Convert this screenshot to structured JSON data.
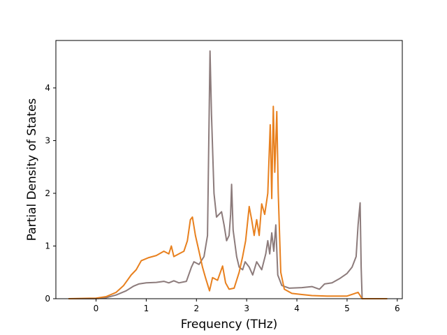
{
  "chart_data": {
    "type": "line",
    "title": "",
    "xlabel": "Frequency (THz)",
    "ylabel": "Partial Density of States",
    "xlim": [
      -0.8,
      6.1
    ],
    "ylim": [
      0,
      4.9
    ],
    "xticks": [
      0,
      1,
      2,
      3,
      4,
      5,
      6
    ],
    "yticks": [
      0,
      1,
      2,
      3,
      4
    ],
    "grid": false,
    "legend": "none",
    "series": [
      {
        "color": "#8c7b7b",
        "points": [
          [
            -0.55,
            0
          ],
          [
            0.0,
            0.0
          ],
          [
            0.2,
            0.02
          ],
          [
            0.4,
            0.07
          ],
          [
            0.6,
            0.15
          ],
          [
            0.75,
            0.24
          ],
          [
            0.85,
            0.28
          ],
          [
            1.0,
            0.3
          ],
          [
            1.2,
            0.31
          ],
          [
            1.35,
            0.33
          ],
          [
            1.45,
            0.3
          ],
          [
            1.55,
            0.34
          ],
          [
            1.65,
            0.3
          ],
          [
            1.8,
            0.33
          ],
          [
            1.9,
            0.6
          ],
          [
            1.95,
            0.7
          ],
          [
            2.05,
            0.65
          ],
          [
            2.15,
            0.8
          ],
          [
            2.22,
            1.2
          ],
          [
            2.27,
            4.7
          ],
          [
            2.3,
            3.5
          ],
          [
            2.35,
            2.0
          ],
          [
            2.4,
            1.55
          ],
          [
            2.45,
            1.6
          ],
          [
            2.5,
            1.65
          ],
          [
            2.55,
            1.4
          ],
          [
            2.6,
            1.1
          ],
          [
            2.65,
            1.2
          ],
          [
            2.68,
            1.6
          ],
          [
            2.7,
            2.17
          ],
          [
            2.73,
            1.3
          ],
          [
            2.8,
            0.8
          ],
          [
            2.85,
            0.6
          ],
          [
            2.92,
            0.55
          ],
          [
            2.97,
            0.7
          ],
          [
            3.05,
            0.6
          ],
          [
            3.12,
            0.45
          ],
          [
            3.2,
            0.7
          ],
          [
            3.3,
            0.55
          ],
          [
            3.38,
            0.85
          ],
          [
            3.42,
            1.1
          ],
          [
            3.46,
            0.85
          ],
          [
            3.5,
            1.25
          ],
          [
            3.54,
            0.9
          ],
          [
            3.58,
            1.4
          ],
          [
            3.62,
            0.45
          ],
          [
            3.7,
            0.25
          ],
          [
            3.85,
            0.2
          ],
          [
            4.1,
            0.21
          ],
          [
            4.3,
            0.23
          ],
          [
            4.45,
            0.18
          ],
          [
            4.55,
            0.28
          ],
          [
            4.7,
            0.3
          ],
          [
            4.85,
            0.38
          ],
          [
            5.0,
            0.48
          ],
          [
            5.1,
            0.6
          ],
          [
            5.18,
            0.8
          ],
          [
            5.22,
            1.4
          ],
          [
            5.26,
            1.82
          ],
          [
            5.28,
            0.6
          ],
          [
            5.3,
            0
          ],
          [
            5.8,
            0
          ]
        ]
      },
      {
        "color": "#e8801e",
        "points": [
          [
            -0.55,
            0
          ],
          [
            0.0,
            0.01
          ],
          [
            0.2,
            0.04
          ],
          [
            0.4,
            0.12
          ],
          [
            0.55,
            0.25
          ],
          [
            0.7,
            0.45
          ],
          [
            0.8,
            0.55
          ],
          [
            0.9,
            0.72
          ],
          [
            1.05,
            0.78
          ],
          [
            1.2,
            0.82
          ],
          [
            1.35,
            0.9
          ],
          [
            1.45,
            0.85
          ],
          [
            1.5,
            1.0
          ],
          [
            1.55,
            0.8
          ],
          [
            1.65,
            0.85
          ],
          [
            1.75,
            0.9
          ],
          [
            1.82,
            1.1
          ],
          [
            1.88,
            1.5
          ],
          [
            1.92,
            1.55
          ],
          [
            1.98,
            1.2
          ],
          [
            2.05,
            0.9
          ],
          [
            2.12,
            0.6
          ],
          [
            2.18,
            0.4
          ],
          [
            2.26,
            0.15
          ],
          [
            2.32,
            0.4
          ],
          [
            2.42,
            0.35
          ],
          [
            2.52,
            0.62
          ],
          [
            2.58,
            0.3
          ],
          [
            2.65,
            0.18
          ],
          [
            2.75,
            0.2
          ],
          [
            2.85,
            0.5
          ],
          [
            2.92,
            0.8
          ],
          [
            2.98,
            1.1
          ],
          [
            3.05,
            1.75
          ],
          [
            3.1,
            1.5
          ],
          [
            3.15,
            1.2
          ],
          [
            3.2,
            1.5
          ],
          [
            3.25,
            1.2
          ],
          [
            3.3,
            1.8
          ],
          [
            3.36,
            1.6
          ],
          [
            3.42,
            2.0
          ],
          [
            3.47,
            3.3
          ],
          [
            3.5,
            1.9
          ],
          [
            3.53,
            3.65
          ],
          [
            3.56,
            2.4
          ],
          [
            3.6,
            3.55
          ],
          [
            3.63,
            2.0
          ],
          [
            3.68,
            0.5
          ],
          [
            3.75,
            0.18
          ],
          [
            3.9,
            0.1
          ],
          [
            4.1,
            0.08
          ],
          [
            4.3,
            0.06
          ],
          [
            4.6,
            0.05
          ],
          [
            5.0,
            0.05
          ],
          [
            5.22,
            0.12
          ],
          [
            5.3,
            0
          ],
          [
            5.8,
            0
          ]
        ]
      }
    ]
  }
}
